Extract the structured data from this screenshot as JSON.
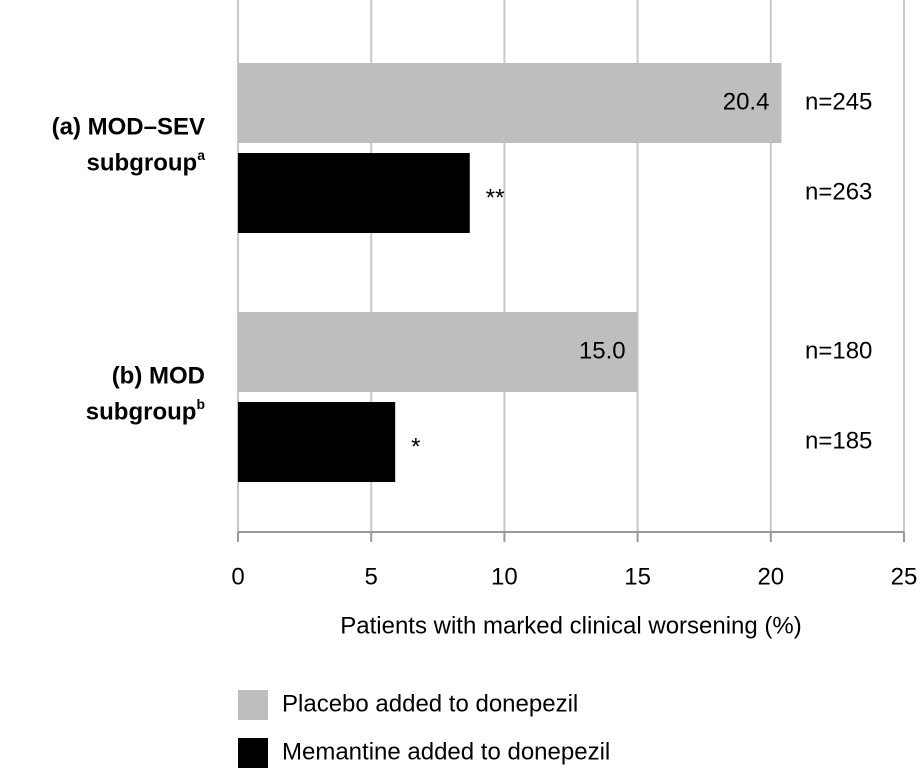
{
  "chart_data": {
    "type": "hbar",
    "categories": [
      "(a) MOD–SEV subgroup",
      "(b) MOD subgroup"
    ],
    "category_superscripts": [
      "a",
      "b"
    ],
    "series": [
      {
        "name": "Placebo added to donepezil",
        "color": "#bebebe",
        "label_color": "#000000",
        "values": [
          20.4,
          15.0
        ],
        "value_labels": [
          "20.4",
          "15.0"
        ],
        "significance": [
          null,
          null
        ],
        "n_labels": [
          "n=245",
          "n=180"
        ]
      },
      {
        "name": "Memantine added to donepezil",
        "color": "#000000",
        "label_color": "#ffffff",
        "values": [
          8.7,
          5.9
        ],
        "value_labels": [
          "8.7",
          "5.9"
        ],
        "significance": [
          "**",
          "*"
        ],
        "n_labels": [
          "n=263",
          "n=185"
        ]
      }
    ],
    "xlabel": "Patients with marked clinical worsening (%)",
    "xlim": [
      0,
      25
    ],
    "xticks": [
      0,
      5,
      10,
      15,
      20,
      25
    ],
    "grid": true,
    "legend": "bottom-left"
  }
}
